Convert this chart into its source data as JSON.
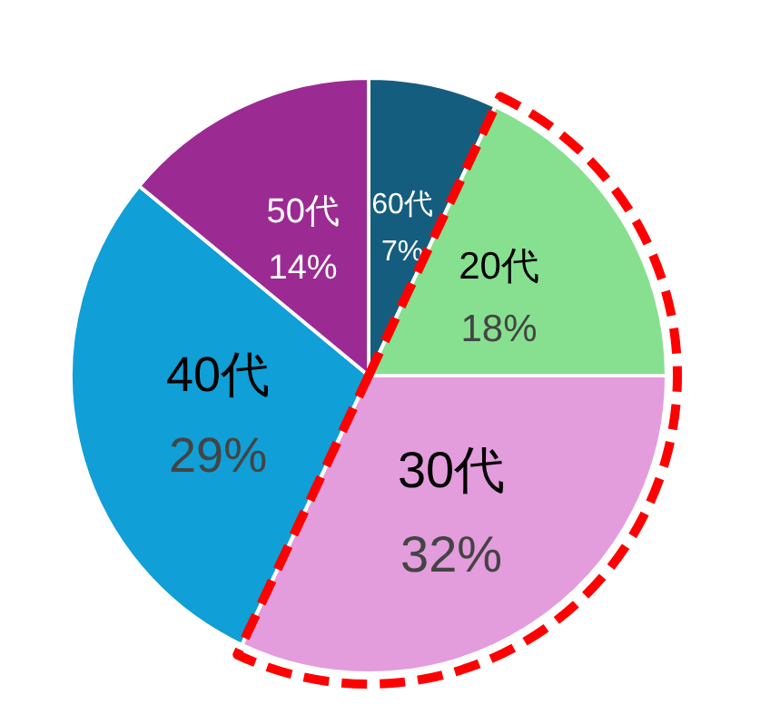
{
  "chart_data": {
    "type": "pie",
    "categories": [
      "60代",
      "20代",
      "30代",
      "40代",
      "50代"
    ],
    "values": [
      7,
      18,
      32,
      29,
      14
    ],
    "value_labels": [
      "7%",
      "18%",
      "32%",
      "29%",
      "14%"
    ],
    "colors": [
      "#155d7e",
      "#86e08f",
      "#e39cdc",
      "#109fd6",
      "#9c2a93"
    ]
  }
}
